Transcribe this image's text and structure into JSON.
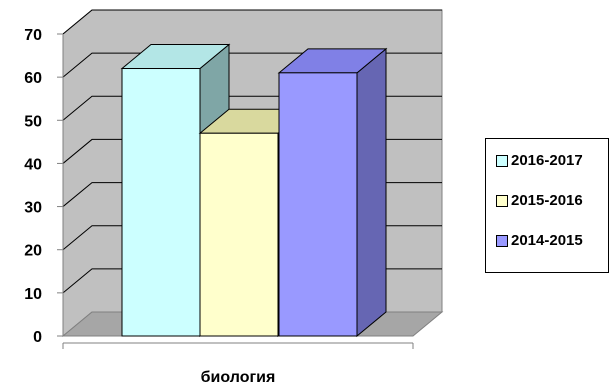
{
  "chart_data": {
    "type": "bar",
    "title": "",
    "xlabel": "",
    "ylabel": "",
    "categories": [
      "биология"
    ],
    "ylim": [
      0,
      70
    ],
    "yticks": [
      0,
      10,
      20,
      30,
      40,
      50,
      60,
      70
    ],
    "grid": true,
    "three_d": true,
    "legend_position": "right",
    "series": [
      {
        "name": "2016-2017",
        "values": [
          62
        ],
        "color": "#CCFFFF"
      },
      {
        "name": "2015-2016",
        "values": [
          47
        ],
        "color": "#FFFFCC"
      },
      {
        "name": "2014-2015",
        "values": [
          61
        ],
        "color": "#9999FF"
      }
    ]
  }
}
